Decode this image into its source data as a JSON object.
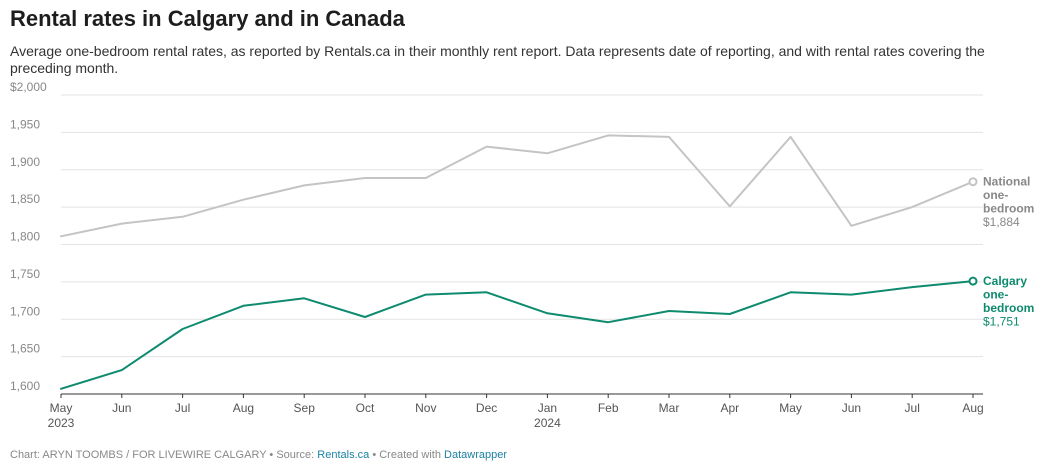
{
  "title": "Rental rates in Calgary and in Canada",
  "subtitle": "Average one-bedroom rental rates, as reported by Rentals.ca in their monthly rent report. Data represents date of reporting, and with rental rates covering the preceding month.",
  "footer": {
    "chart_prefix": "Chart: ",
    "chart_credit": "ARYN TOOMBS / FOR LIVEWIRE CALGARY",
    "separator": " • ",
    "source_prefix": "Source: ",
    "source_link": "Rentals.ca",
    "created_prefix": "Created with ",
    "created_link": "Datawrapper"
  },
  "chart_data": {
    "type": "line",
    "categories": [
      "May",
      "Jun",
      "Jul",
      "Aug",
      "Sep",
      "Oct",
      "Nov",
      "Dec",
      "Jan",
      "Feb",
      "Mar",
      "Apr",
      "May",
      "Jun",
      "Jul",
      "Aug"
    ],
    "year_labels": [
      {
        "index": 0,
        "label": "2023"
      },
      {
        "index": 8,
        "label": "2024"
      }
    ],
    "ylim": [
      1600,
      2000
    ],
    "yticks": [
      1600,
      1650,
      1700,
      1750,
      1800,
      1850,
      1900,
      1950,
      2000
    ],
    "ytick_labels": [
      "1,600",
      "1,650",
      "1,700",
      "1,750",
      "1,800",
      "1,850",
      "1,900",
      "1,950",
      "$2,000"
    ],
    "grid": true,
    "series": [
      {
        "key": "national",
        "label_lines": [
          "National",
          "one-",
          "bedroom"
        ],
        "end_value_label": "$1,884",
        "color": "#c4c4c4",
        "label_color": "#888888",
        "values": [
          1811,
          1828,
          1837,
          1860,
          1879,
          1889,
          1889,
          1931,
          1922,
          1946,
          1944,
          1851,
          1944,
          1825,
          1850,
          1884
        ]
      },
      {
        "key": "calgary",
        "label_lines": [
          "Calgary",
          "one-",
          "bedroom"
        ],
        "end_value_label": "$1,751",
        "color": "#0e8b6f",
        "label_color": "#0e8b6f",
        "values": [
          1607,
          1632,
          1687,
          1718,
          1728,
          1703,
          1733,
          1736,
          1708,
          1696,
          1711,
          1707,
          1736,
          1733,
          1743,
          1751
        ]
      }
    ]
  }
}
